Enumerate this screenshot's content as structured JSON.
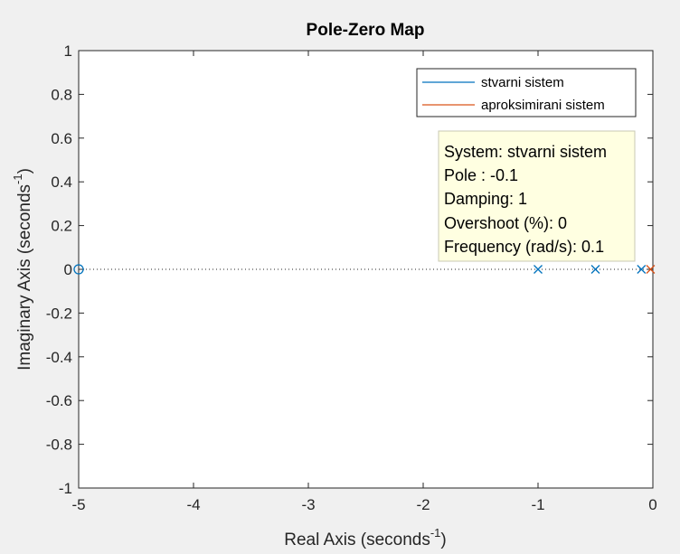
{
  "chart_data": {
    "type": "scatter",
    "title": "Pole-Zero Map",
    "xlabel": {
      "text": "Real Axis (seconds",
      "sup": "-1",
      "close": ")"
    },
    "ylabel": {
      "text": "Imaginary Axis (seconds",
      "sup": "-1",
      "close": ")"
    },
    "xlim": [
      -5,
      0
    ],
    "ylim": [
      -1,
      1
    ],
    "xticks": [
      -5,
      -4,
      -3,
      -2,
      -1,
      0
    ],
    "yticks": [
      -1,
      -0.8,
      -0.6,
      -0.4,
      -0.2,
      0,
      0.2,
      0.4,
      0.6,
      0.8,
      1
    ],
    "xtick_labels": [
      "-5",
      "-4",
      "-3",
      "-2",
      "-1",
      "0"
    ],
    "ytick_labels": [
      "-1",
      "-0.8",
      "-0.6",
      "-0.4",
      "-0.2",
      "0",
      "0.2",
      "0.4",
      "0.6",
      "0.8",
      "1"
    ],
    "grid": false,
    "legend_position": "top-right",
    "reference_line": {
      "y": 0,
      "style": "dotted"
    },
    "series": [
      {
        "name": "stvarni sistem",
        "color": "#0072bd",
        "poles": [
          [
            -1,
            0
          ],
          [
            -0.5,
            0
          ],
          [
            -0.1,
            0
          ]
        ],
        "zeros": [
          [
            -5,
            0
          ]
        ]
      },
      {
        "name": "aproksimirani sistem",
        "color": "#d95319",
        "poles": [
          [
            -0.02,
            0
          ]
        ],
        "zeros": []
      }
    ],
    "datatip": {
      "lines": [
        "System: stvarni sistem",
        "Pole : -0.1",
        "Damping: 1",
        "Overshoot (%): 0",
        "Frequency (rad/s): 0.1"
      ]
    }
  }
}
